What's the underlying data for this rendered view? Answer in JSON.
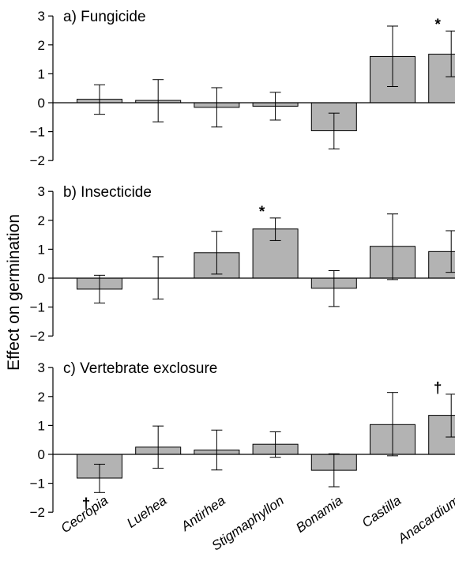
{
  "figure": {
    "ylabel": "Effect on germination",
    "categories": [
      "Cecropia",
      "Luehea",
      "Antirhea",
      "Stigmaphyllon",
      "Bonamia",
      "Castilla",
      "Anacardium"
    ]
  },
  "chart_data": [
    {
      "type": "bar",
      "title": "a) Fungicide",
      "categories": [
        "Cecropia",
        "Luehea",
        "Antirhea",
        "Stigmaphyllon",
        "Bonamia",
        "Castilla",
        "Anacardium"
      ],
      "values": [
        0.12,
        0.08,
        -0.16,
        -0.12,
        -0.97,
        1.6,
        1.68
      ],
      "error_low": [
        -0.4,
        -0.66,
        -0.84,
        -0.6,
        -1.6,
        0.56,
        0.9
      ],
      "error_high": [
        0.62,
        0.8,
        0.52,
        0.36,
        -0.36,
        2.65,
        2.48
      ],
      "markers": [
        "",
        "",
        "",
        "",
        "",
        "",
        "*"
      ],
      "ylim": [
        -2,
        3
      ],
      "yticks": [
        "3",
        "2",
        "1",
        "0",
        "−1",
        "−2"
      ]
    },
    {
      "type": "bar",
      "title": "b) Insecticide",
      "categories": [
        "Cecropia",
        "Luehea",
        "Antirhea",
        "Stigmaphyllon",
        "Bonamia",
        "Castilla",
        "Anacardium"
      ],
      "values": [
        -0.38,
        0.0,
        0.88,
        1.7,
        -0.35,
        1.1,
        0.92
      ],
      "error_low": [
        -0.86,
        -0.72,
        0.14,
        1.3,
        -0.98,
        -0.05,
        0.2
      ],
      "error_high": [
        0.1,
        0.74,
        1.62,
        2.08,
        0.26,
        2.22,
        1.64
      ],
      "markers": [
        "",
        "",
        "",
        "*",
        "",
        "",
        ""
      ],
      "ylim": [
        -2,
        3
      ],
      "yticks": [
        "3",
        "2",
        "1",
        "0",
        "−1",
        "−2"
      ]
    },
    {
      "type": "bar",
      "title": "c) Vertebrate exclosure",
      "categories": [
        "Cecropia",
        "Luehea",
        "Antirhea",
        "Stigmaphyllon",
        "Bonamia",
        "Castilla",
        "Anacardium"
      ],
      "values": [
        -0.82,
        0.25,
        0.15,
        0.35,
        -0.55,
        1.03,
        1.35
      ],
      "error_low": [
        -1.32,
        -0.48,
        -0.54,
        -0.1,
        -1.12,
        -0.05,
        0.6
      ],
      "error_high": [
        -0.34,
        0.98,
        0.84,
        0.78,
        0.02,
        2.14,
        2.08
      ],
      "markers": [
        "†",
        "",
        "",
        "",
        "",
        "",
        "†"
      ],
      "ylim": [
        -2,
        3
      ],
      "yticks": [
        "3",
        "2",
        "1",
        "0",
        "−1",
        "−2"
      ]
    }
  ],
  "colors": {
    "bar_fill": "#b3b3b3",
    "stroke": "#000000"
  }
}
